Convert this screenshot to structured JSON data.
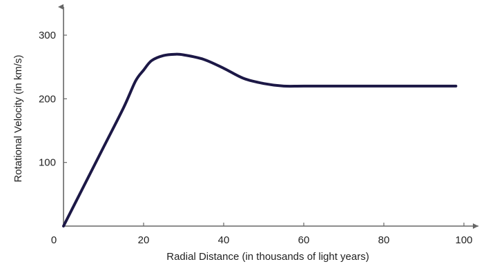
{
  "chart_data": {
    "type": "line",
    "title": "",
    "xlabel": "Radial Distance (in thousands of light years)",
    "ylabel": "Rotational Velocity (in km/s)",
    "xlim": [
      0,
      100
    ],
    "ylim": [
      0,
      300
    ],
    "x_ticks": [
      0,
      20,
      40,
      60,
      80,
      100
    ],
    "y_ticks": [
      0,
      100,
      200,
      300
    ],
    "x_tick_labels": [
      "0",
      "20",
      "40",
      "60",
      "80",
      "100"
    ],
    "y_tick_labels": [
      "0",
      "100",
      "200",
      "300"
    ],
    "grid": false,
    "legend": "none",
    "series": [
      {
        "color": "#1c1846",
        "x": [
          0,
          5,
          10,
          15,
          18,
          20,
          22,
          25,
          28,
          30,
          35,
          40,
          45,
          50,
          55,
          60,
          70,
          80,
          90,
          98
        ],
        "y": [
          0,
          62,
          124,
          186,
          228,
          245,
          260,
          268,
          270,
          269,
          262,
          248,
          232,
          224,
          220,
          220,
          220,
          220,
          220,
          220
        ]
      }
    ],
    "colors": {
      "axis": "#666666",
      "line": "#1c1846"
    }
  }
}
